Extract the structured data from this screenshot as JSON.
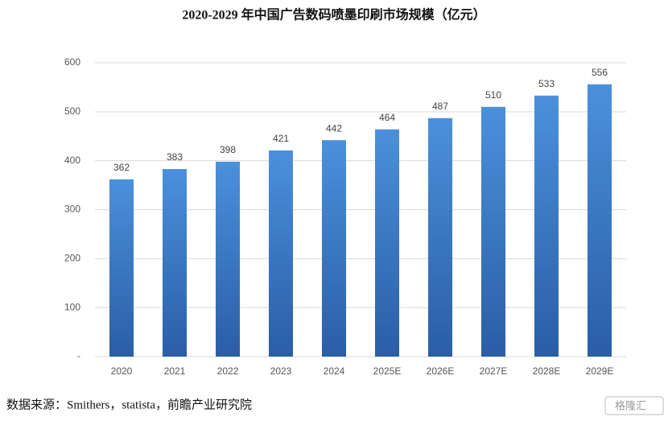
{
  "chart_data": {
    "type": "bar",
    "title": "2020-2029 年中国广告数码喷墨印刷市场规模（亿元）",
    "categories": [
      "2020",
      "2021",
      "2022",
      "2023",
      "2024",
      "2025E",
      "2026E",
      "2027E",
      "2028E",
      "2029E"
    ],
    "values": [
      362,
      383,
      398,
      421,
      442,
      464,
      487,
      510,
      533,
      556
    ],
    "color": "#3a78c8",
    "ylim": [
      0,
      600
    ],
    "yticks": [
      {
        "value": 0,
        "label": "-"
      },
      100,
      200,
      300,
      400,
      500,
      600
    ],
    "grid": true,
    "source": "数据来源：Smithers，statista，前瞻产业研究院",
    "watermark": "格隆汇"
  }
}
